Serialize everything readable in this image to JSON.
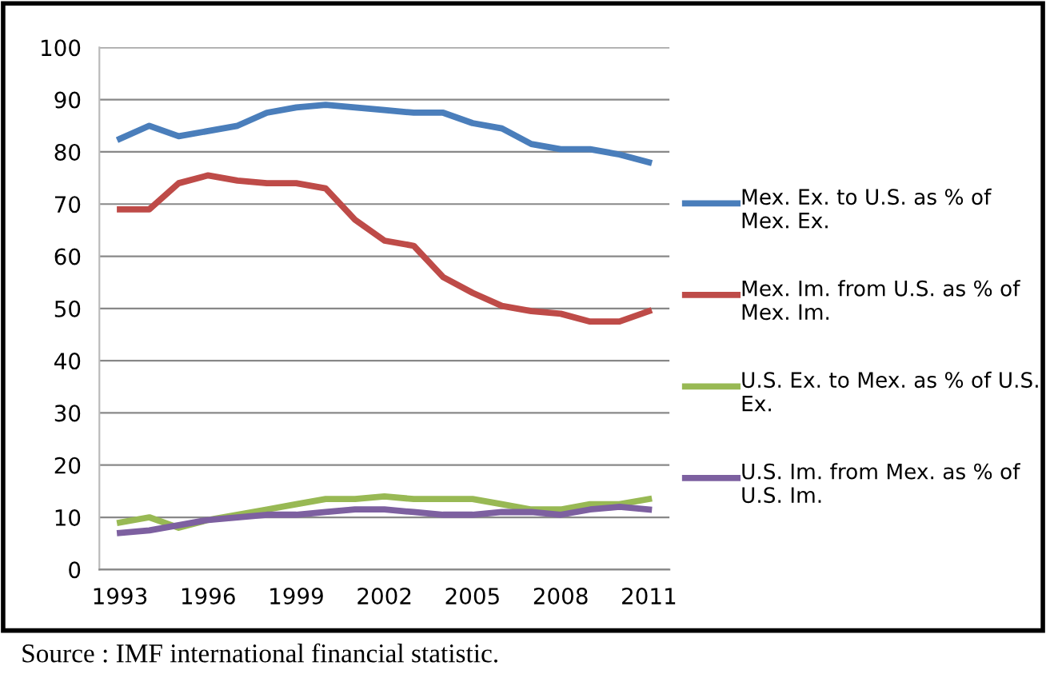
{
  "chart_data": {
    "type": "line",
    "x": [
      1993,
      1994,
      1995,
      1996,
      1997,
      1998,
      1999,
      2000,
      2001,
      2002,
      2003,
      2004,
      2005,
      2006,
      2007,
      2008,
      2009,
      2010,
      2011
    ],
    "series": [
      {
        "name": "Mex. Ex. to U.S. as % of Mex. Ex.",
        "color": "#4a7ebb",
        "values": [
          82.5,
          85,
          83,
          84,
          85,
          87.5,
          88.5,
          89,
          88.5,
          88,
          87.5,
          87.5,
          85.5,
          84.5,
          81.5,
          80.5,
          80.5,
          79.5,
          78
        ]
      },
      {
        "name": "Mex. Im. from U.S. as % of Mex. Im.",
        "color": "#be4b48",
        "values": [
          69,
          69,
          74,
          75.5,
          74.5,
          74,
          74,
          73,
          67,
          63,
          62,
          56,
          53,
          50.5,
          49.5,
          49,
          47.5,
          47.5,
          49.5
        ]
      },
      {
        "name": "U.S. Ex. to Mex. as % of U.S. Ex.",
        "color": "#98b954",
        "values": [
          9,
          10,
          8,
          9.5,
          10.5,
          11.5,
          12.5,
          13.5,
          13.5,
          14,
          13.5,
          13.5,
          13.5,
          12.5,
          11.5,
          11.5,
          12.5,
          12.5,
          13.5
        ]
      },
      {
        "name": "U.S. Im. from Mex. as % of U.S. Im.",
        "color": "#7d60a0",
        "values": [
          7,
          7.5,
          8.5,
          9.5,
          10,
          10.5,
          10.5,
          11,
          11.5,
          11.5,
          11,
          10.5,
          10.5,
          11,
          11,
          10.5,
          11.5,
          12,
          11.5
        ]
      }
    ],
    "xlim": [
      1992.3,
      2011.7
    ],
    "xticks": [
      1993,
      1996,
      1999,
      2002,
      2005,
      2008,
      2011
    ],
    "ylim": [
      0,
      100
    ],
    "yticks": [
      0,
      10,
      20,
      30,
      40,
      50,
      60,
      70,
      80,
      90,
      100
    ],
    "grid": "y",
    "legend": "right",
    "marker": "none",
    "line_style": "solid",
    "annotations": [
      "Source : IMF international financial statistic."
    ]
  }
}
